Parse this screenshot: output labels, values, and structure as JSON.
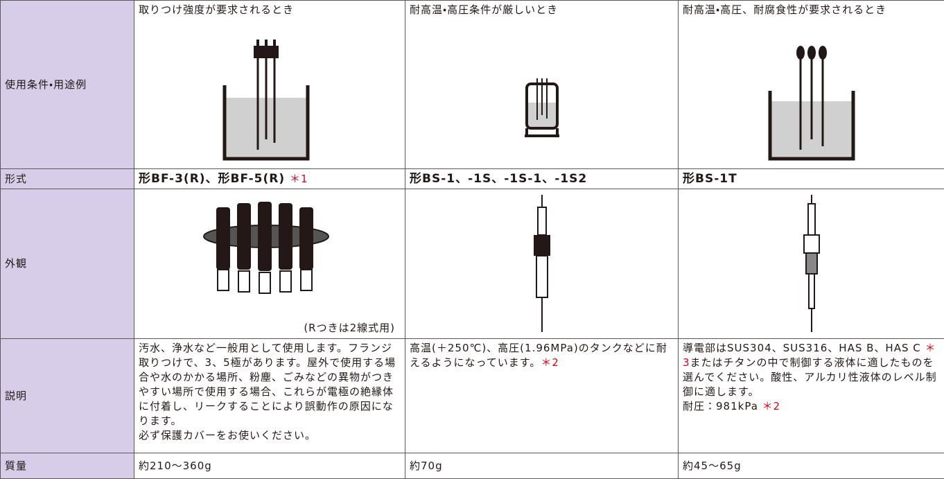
{
  "table": {
    "rows": [
      {
        "label": "使用条件・用途例",
        "cells": [
          {
            "text": "取りつけ強度が要求されるとき"
          },
          {
            "text": "耐高温・高圧条件が厳しいとき"
          },
          {
            "text": "耐高温・高圧、耐腐食性が要求されるとき"
          }
        ]
      },
      {
        "label": "形式",
        "cells": [
          {
            "text": "形BF-3(R)、形BF-5(R)",
            "note": "＊1"
          },
          {
            "text": "形BS-1、-1S、-1S-1、-1S2"
          },
          {
            "text": "形BS-1T"
          }
        ]
      },
      {
        "label": "外観",
        "cells": [
          {
            "caption": "(Rつきは2線式用)"
          },
          {},
          {}
        ]
      },
      {
        "label": "説明",
        "cells": [
          {
            "paragraphs": [
              [
                "汚水、浄水など一般用として使用します。フランジ取りつけで、3、5極があります。屋外で使用する場合や水のかかる場所、粉塵、ごみなどの異物がつきやすい場所で使用する場合、これらが電極の絶縁体に付着し、リークすることにより誤動作の原因になります。"
              ],
              [
                "必ず保護カバーをお使いください。"
              ]
            ]
          },
          {
            "paragraphs": [
              [
                "高温(＋250℃)、高圧(1.96MPa)のタンクなどに耐えるようになっています。",
                "＊2"
              ]
            ]
          },
          {
            "paragraphs": [
              [
                "導電部はSUS304、SUS316、HAS B、HAS C ",
                "＊3",
                "またはチタンの中で制御する液体に適したものを選んでください。酸性、アルカリ性液体のレベル制御に適します。"
              ],
              [
                "耐圧：981kPa ",
                "＊2"
              ]
            ]
          }
        ]
      },
      {
        "label": "質量",
        "cells": [
          {
            "text": "約210〜360g"
          },
          {
            "text": "約70g"
          },
          {
            "text": "約45〜65g"
          }
        ]
      }
    ]
  }
}
